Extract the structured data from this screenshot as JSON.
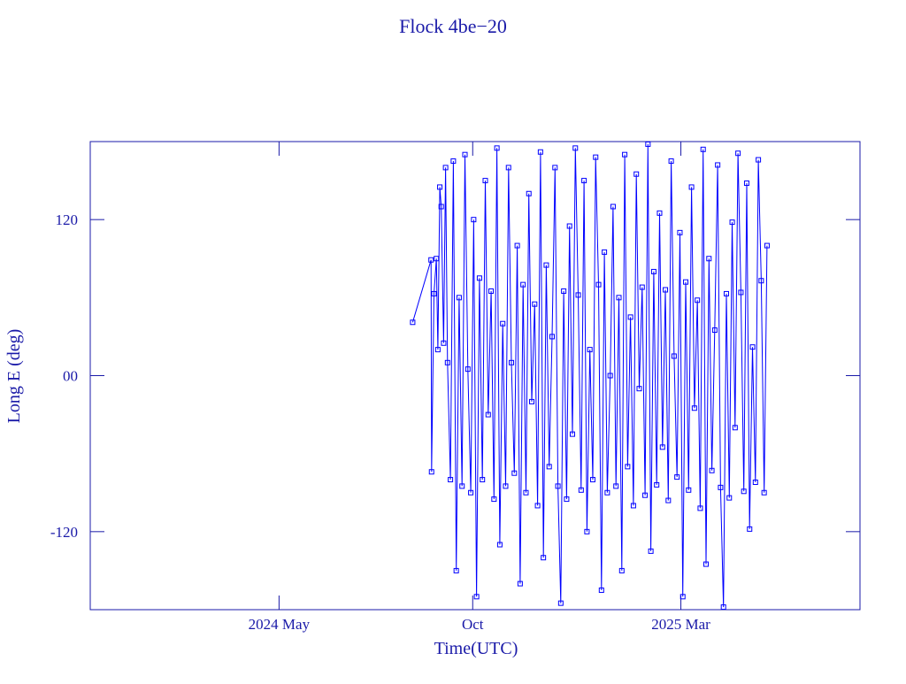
{
  "chart_data": {
    "type": "line",
    "title": "Flock 4be−20",
    "x_label": "Time(UTC)",
    "y_label": "Long E (deg)",
    "xlim": [
      2023.94,
      2025.53
    ],
    "xticks": [
      {
        "value": 2024.33,
        "label": "2024 May"
      },
      {
        "value": 2024.73,
        "label": "Oct"
      },
      {
        "value": 2025.16,
        "label": "2025 Mar"
      }
    ],
    "ylim": [
      -180,
      180
    ],
    "yticks": [
      -120,
      {
        "value": 0,
        "label": "00"
      },
      120
    ],
    "series": [
      {
        "color": "#0000ff",
        "x": [
          2024.606,
          2024.644,
          2024.645,
          2024.65,
          2024.655,
          2024.658,
          2024.662,
          2024.665,
          2024.67,
          2024.674,
          2024.678,
          2024.684,
          2024.69,
          2024.696,
          2024.702,
          2024.708,
          2024.714,
          2024.72,
          2024.726,
          2024.732,
          2024.738,
          2024.744,
          2024.75,
          2024.756,
          2024.762,
          2024.768,
          2024.774,
          2024.78,
          2024.786,
          2024.792,
          2024.798,
          2024.804,
          2024.81,
          2024.816,
          2024.822,
          2024.828,
          2024.834,
          2024.84,
          2024.846,
          2024.852,
          2024.858,
          2024.864,
          2024.87,
          2024.876,
          2024.882,
          2024.888,
          2024.894,
          2024.9,
          2024.906,
          2024.912,
          2024.918,
          2024.924,
          2024.93,
          2024.936,
          2024.942,
          2024.948,
          2024.954,
          2024.96,
          2024.966,
          2024.972,
          2024.978,
          2024.984,
          2024.99,
          2024.996,
          2025.002,
          2025.008,
          2025.014,
          2025.02,
          2025.026,
          2025.032,
          2025.038,
          2025.044,
          2025.05,
          2025.056,
          2025.062,
          2025.068,
          2025.074,
          2025.08,
          2025.086,
          2025.092,
          2025.098,
          2025.104,
          2025.11,
          2025.116,
          2025.122,
          2025.128,
          2025.134,
          2025.14,
          2025.146,
          2025.152,
          2025.158,
          2025.164,
          2025.17,
          2025.176,
          2025.182,
          2025.188,
          2025.194,
          2025.2,
          2025.206,
          2025.212,
          2025.218,
          2025.224,
          2025.23,
          2025.236,
          2025.242,
          2025.248,
          2025.254,
          2025.26,
          2025.266,
          2025.272,
          2025.278,
          2025.284,
          2025.29,
          2025.296,
          2025.302,
          2025.308,
          2025.314,
          2025.32,
          2025.326,
          2025.332,
          2025.338
        ],
        "values": [
          41,
          89,
          -74,
          63,
          90,
          20,
          145,
          130,
          25,
          160,
          10,
          -80,
          165,
          -150,
          60,
          -85,
          170,
          5,
          -90,
          120,
          -170,
          75,
          -80,
          150,
          -30,
          65,
          -95,
          175,
          -130,
          40,
          -85,
          160,
          10,
          -75,
          100,
          -160,
          70,
          -90,
          140,
          -20,
          55,
          -100,
          172,
          -140,
          85,
          -70,
          30,
          160,
          -85,
          -175,
          65,
          -95,
          115,
          -45,
          175,
          62,
          -88,
          150,
          -120,
          20,
          -80,
          168,
          70,
          -165,
          95,
          -90,
          0,
          130,
          -85,
          60,
          -150,
          170,
          -70,
          45,
          -100,
          155,
          -10,
          68,
          -92,
          178,
          -135,
          80,
          -84,
          125,
          -55,
          66,
          -96,
          165,
          15,
          -78,
          110,
          -170,
          72,
          -88,
          145,
          -25,
          58,
          -102,
          174,
          -145,
          90,
          -73,
          35,
          162,
          -86,
          -178,
          63,
          -94,
          118,
          -40,
          171,
          64,
          -89,
          148,
          -118,
          22,
          -82,
          166,
          73,
          -90,
          100
        ]
      }
    ]
  }
}
